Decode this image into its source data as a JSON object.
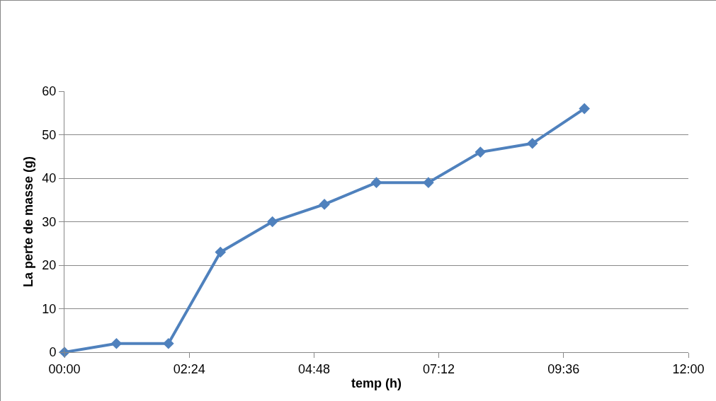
{
  "chart_data": {
    "type": "line",
    "xlabel": "temp (h)",
    "ylabel": "La perte de masse (g)",
    "x": [
      0,
      1,
      2,
      3,
      4,
      5,
      6,
      7,
      8,
      9,
      10
    ],
    "series": [
      {
        "color": "#4f81bd",
        "values": [
          0,
          2,
          2,
          23,
          30,
          34,
          39,
          39,
          46,
          48,
          56
        ]
      }
    ],
    "xlim": [
      0,
      12
    ],
    "xticks": [
      {
        "value": 0,
        "label": "00:00"
      },
      {
        "value": 2.4,
        "label": "02:24"
      },
      {
        "value": 4.8,
        "label": "04:48"
      },
      {
        "value": 7.2,
        "label": "07:12"
      },
      {
        "value": 9.6,
        "label": "09:36"
      },
      {
        "value": 12,
        "label": "12:00"
      }
    ],
    "ylim": [
      0,
      60
    ],
    "yticks": [
      0,
      10,
      20,
      30,
      40,
      50,
      60
    ],
    "grid": "y",
    "marker": "diamond",
    "line_style": "solid",
    "legend": false
  }
}
